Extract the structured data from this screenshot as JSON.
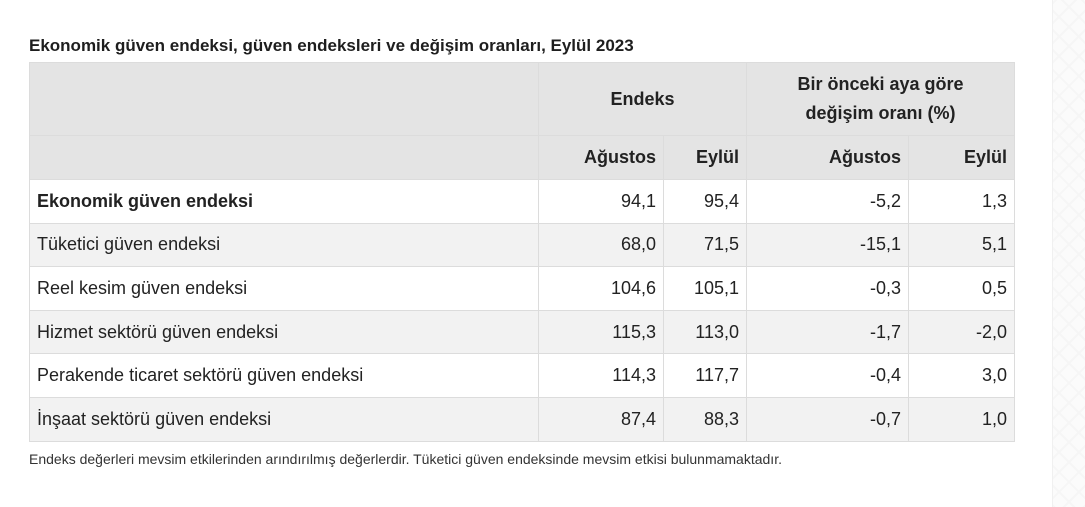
{
  "caption": "Ekonomik güven endeksi, güven endeksleri ve değişim oranları, Eylül 2023",
  "header": {
    "group1": "Endeks",
    "group2_line1": "Bir önceki aya göre",
    "group2_line2": "değişim oranı (%)",
    "sub": [
      "Ağustos",
      "Eylül",
      "Ağustos",
      "Eylül"
    ]
  },
  "rows": [
    {
      "label": "Ekonomik güven endeksi",
      "bold": true,
      "values": [
        "94,1",
        "95,4",
        "-5,2",
        "1,3"
      ]
    },
    {
      "label": "Tüketici güven endeksi",
      "bold": false,
      "values": [
        "68,0",
        "71,5",
        "-15,1",
        "5,1"
      ]
    },
    {
      "label": "Reel kesim güven endeksi",
      "bold": false,
      "values": [
        "104,6",
        "105,1",
        "-0,3",
        "0,5"
      ]
    },
    {
      "label": "Hizmet sektörü güven endeksi",
      "bold": false,
      "values": [
        "115,3",
        "113,0",
        "-1,7",
        "-2,0"
      ]
    },
    {
      "label": "Perakende ticaret sektörü güven endeksi",
      "bold": false,
      "values": [
        "114,3",
        "117,7",
        "-0,4",
        "3,0"
      ]
    },
    {
      "label": "İnşaat sektörü güven endeksi",
      "bold": false,
      "values": [
        "87,4",
        "88,3",
        "-0,7",
        "1,0"
      ]
    }
  ],
  "footnote": "Endeks değerleri mevsim etkilerinden arındırılmış değerlerdir. Tüketici güven endeksinde mevsim etkisi bulunmamaktadır."
}
